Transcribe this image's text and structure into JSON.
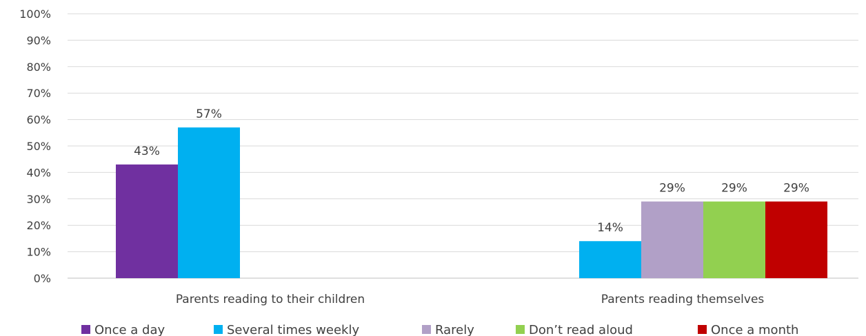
{
  "chart_data": {
    "type": "bar",
    "categories": [
      "Parents reading to their children",
      "Parents reading themselves"
    ],
    "series": [
      {
        "name": "Once a day",
        "color": "#7030a0",
        "values": [
          43,
          null
        ]
      },
      {
        "name": "Several times weekly",
        "color": "#00b0f0",
        "values": [
          57,
          14
        ]
      },
      {
        "name": "Rarely",
        "color": "#b1a0c7",
        "values": [
          null,
          29
        ]
      },
      {
        "name": "Don’t read aloud",
        "color": "#92d050",
        "values": [
          null,
          29
        ]
      },
      {
        "name": "Once a month",
        "color": "#c00000",
        "values": [
          null,
          29
        ]
      }
    ],
    "data_labels": [
      [
        "43%",
        "57%"
      ],
      [
        "14%",
        "29%",
        "29%",
        "29%"
      ]
    ],
    "ylim": [
      0,
      100
    ],
    "yticks": [
      "0%",
      "10%",
      "20%",
      "30%",
      "40%",
      "50%",
      "60%",
      "70%",
      "80%",
      "90%",
      "100%"
    ],
    "grid": true,
    "legend_position": "bottom"
  }
}
